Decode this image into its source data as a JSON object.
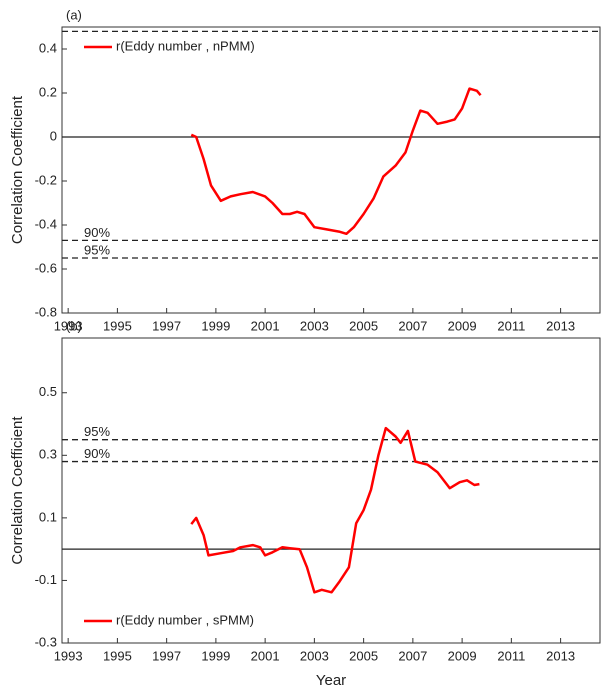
{
  "chart_data": [
    {
      "type": "line",
      "title": "(a)",
      "y_label": "Correlation Coefficient",
      "xlim": [
        1992.75,
        2014.6
      ],
      "xticks": [
        1993,
        1995,
        1997,
        1999,
        2001,
        2003,
        2005,
        2007,
        2009,
        2011,
        2013
      ],
      "ylim": [
        -0.8,
        0.5
      ],
      "yticks": [
        -0.8,
        -0.6,
        -0.4,
        -0.2,
        0,
        0.2,
        0.4
      ],
      "legend": "upper left",
      "hlines": [
        {
          "value": 0.48,
          "style": "dashed"
        },
        {
          "value": 0,
          "style": "solid"
        },
        {
          "value": -0.47,
          "style": "dashed",
          "label": "90%"
        },
        {
          "value": -0.55,
          "style": "dashed",
          "label": "95%"
        }
      ],
      "series": [
        {
          "name": "r(Eddy number , nPMM)",
          "color": "#ff0000",
          "x": [
            1998,
            1998.2,
            1998.5,
            1998.8,
            1999.2,
            1999.6,
            2000,
            2000.5,
            2001,
            2001.3,
            2001.7,
            2002,
            2002.3,
            2002.6,
            2003,
            2003.5,
            2004,
            2004.3,
            2004.6,
            2005,
            2005.4,
            2005.8,
            2006.3,
            2006.7,
            2007,
            2007.3,
            2007.6,
            2008,
            2008.4,
            2008.7,
            2009,
            2009.3,
            2009.6,
            2009.75
          ],
          "values": [
            0.01,
            0.0,
            -0.1,
            -0.22,
            -0.29,
            -0.27,
            -0.26,
            -0.25,
            -0.27,
            -0.3,
            -0.35,
            -0.35,
            -0.34,
            -0.35,
            -0.41,
            -0.42,
            -0.43,
            -0.44,
            -0.41,
            -0.35,
            -0.28,
            -0.18,
            -0.13,
            -0.07,
            0.03,
            0.12,
            0.11,
            0.06,
            0.07,
            0.08,
            0.13,
            0.22,
            0.21,
            0.19
          ]
        }
      ]
    },
    {
      "type": "line",
      "title": "(b)",
      "x_label": "Year",
      "y_label": "Correlation Coefficient",
      "xlim": [
        1992.75,
        2014.6
      ],
      "xticks": [
        1993,
        1995,
        1997,
        1999,
        2001,
        2003,
        2005,
        2007,
        2009,
        2011,
        2013
      ],
      "ylim": [
        -0.3,
        0.675
      ],
      "yticks": [
        -0.3,
        -0.1,
        0.1,
        0.3,
        0.5
      ],
      "legend": "lower left",
      "hlines": [
        {
          "value": 0.35,
          "style": "dashed",
          "label": "95%"
        },
        {
          "value": 0.28,
          "style": "dashed",
          "label": "90%"
        },
        {
          "value": 0,
          "style": "solid"
        }
      ],
      "series": [
        {
          "name": "r(Eddy number , sPMM)",
          "color": "#ff0000",
          "x": [
            1998,
            1998.2,
            1998.5,
            1998.7,
            1999.2,
            1999.7,
            2000,
            2000.5,
            2000.8,
            2001,
            2001.3,
            2001.7,
            2002,
            2002.4,
            2002.7,
            2003,
            2003.3,
            2003.7,
            2004,
            2004.4,
            2004.7,
            2005,
            2005.3,
            2005.6,
            2005.9,
            2006.3,
            2006.5,
            2006.8,
            2007.1,
            2007.6,
            2008,
            2008.5,
            2008.9,
            2009.2,
            2009.5,
            2009.7
          ],
          "values": [
            0.08,
            0.1,
            0.045,
            -0.02,
            -0.013,
            -0.006,
            0.006,
            0.013,
            0.006,
            -0.02,
            -0.01,
            0.006,
            0.003,
            0.0,
            -0.058,
            -0.138,
            -0.13,
            -0.138,
            -0.106,
            -0.058,
            0.083,
            0.125,
            0.19,
            0.3,
            0.387,
            0.36,
            0.34,
            0.378,
            0.28,
            0.27,
            0.246,
            0.195,
            0.214,
            0.22,
            0.205,
            0.208
          ]
        }
      ]
    }
  ]
}
